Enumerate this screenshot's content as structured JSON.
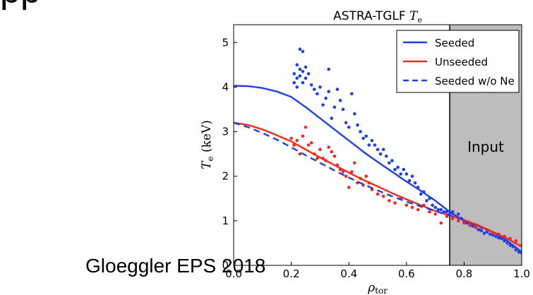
{
  "page": {
    "header_fragment": "pp",
    "credit": "Gloeggler EPS 2018"
  },
  "chart_data": {
    "type": "line",
    "title_main": "ASTRA-TGLF ",
    "title_var": "T",
    "title_sub": "e",
    "xlabel_var": "ρ",
    "xlabel_sub": "tor",
    "ylabel_var": "T",
    "ylabel_sub": "e",
    "ylabel_unit": " (keV)",
    "xlim": [
      0,
      1
    ],
    "ylim": [
      0,
      5.4
    ],
    "xticks": [
      0.0,
      0.2,
      0.4,
      0.6,
      0.8,
      1.0
    ],
    "xtick_labels": [
      "0.0",
      "0.2",
      "0.4",
      "0.6",
      "0.8",
      "1.0"
    ],
    "yticks": [
      0,
      1,
      2,
      3,
      4,
      5
    ],
    "ytick_labels": [
      "0",
      "1",
      "2",
      "3",
      "4",
      "5"
    ],
    "grid": false,
    "legend_position": "top-right",
    "colors": {
      "blue": "#1f3fe6",
      "red": "#ee2a1f",
      "shade": "#bdbdbd"
    },
    "shaded_region": {
      "x": [
        0.75,
        1.0
      ],
      "label": "Input"
    },
    "series": [
      {
        "name": "Seeded",
        "style": "solid",
        "color": "#1f3fe6",
        "x": [
          0,
          0.05,
          0.1,
          0.15,
          0.2,
          0.25,
          0.3,
          0.35,
          0.4,
          0.45,
          0.5,
          0.55,
          0.6,
          0.65,
          0.7,
          0.75,
          0.8,
          0.85,
          0.9,
          0.95,
          1.0
        ],
        "y": [
          4.03,
          4.02,
          3.98,
          3.9,
          3.78,
          3.55,
          3.3,
          3.05,
          2.8,
          2.55,
          2.32,
          2.1,
          1.88,
          1.67,
          1.45,
          1.2,
          1.0,
          0.88,
          0.75,
          0.55,
          0.3
        ]
      },
      {
        "name": "Unseeded",
        "style": "solid",
        "color": "#ee2a1f",
        "x": [
          0,
          0.05,
          0.1,
          0.15,
          0.2,
          0.25,
          0.3,
          0.35,
          0.4,
          0.45,
          0.5,
          0.55,
          0.6,
          0.65,
          0.7,
          0.75,
          0.8,
          0.85,
          0.9,
          0.95,
          1.0
        ],
        "y": [
          3.2,
          3.15,
          3.05,
          2.92,
          2.78,
          2.6,
          2.42,
          2.25,
          2.08,
          1.92,
          1.77,
          1.62,
          1.48,
          1.35,
          1.22,
          1.12,
          1.02,
          0.9,
          0.75,
          0.6,
          0.42
        ]
      },
      {
        "name": "Seeded w/o Ne",
        "style": "dashed",
        "color": "#1f3fe6",
        "x": [
          0,
          0.05,
          0.1,
          0.15,
          0.2,
          0.25,
          0.3,
          0.35,
          0.4,
          0.45,
          0.5,
          0.55,
          0.6,
          0.65,
          0.7,
          0.75,
          0.8
        ],
        "y": [
          3.2,
          3.1,
          2.97,
          2.82,
          2.65,
          2.47,
          2.3,
          2.13,
          1.97,
          1.82,
          1.68,
          1.55,
          1.43,
          1.32,
          1.22,
          1.12,
          1.03
        ]
      }
    ],
    "scatter_series": [
      {
        "color": "#1f3fe6",
        "points": [
          [
            0.21,
            4.3
          ],
          [
            0.21,
            4.1
          ],
          [
            0.22,
            4.5
          ],
          [
            0.22,
            4.2
          ],
          [
            0.22,
            4.0
          ],
          [
            0.23,
            4.85
          ],
          [
            0.23,
            4.4
          ],
          [
            0.23,
            4.25
          ],
          [
            0.24,
            4.8
          ],
          [
            0.24,
            4.35
          ],
          [
            0.24,
            4.1
          ],
          [
            0.25,
            4.45
          ],
          [
            0.25,
            4.2
          ],
          [
            0.26,
            4.3
          ],
          [
            0.27,
            4.05
          ],
          [
            0.28,
            3.95
          ],
          [
            0.29,
            3.85
          ],
          [
            0.3,
            4.0
          ],
          [
            0.31,
            3.6
          ],
          [
            0.32,
            3.75
          ],
          [
            0.33,
            3.9
          ],
          [
            0.33,
            4.4
          ],
          [
            0.34,
            3.3
          ],
          [
            0.35,
            3.55
          ],
          [
            0.36,
            3.95
          ],
          [
            0.37,
            3.7
          ],
          [
            0.38,
            3.5
          ],
          [
            0.39,
            3.2
          ],
          [
            0.4,
            3.1
          ],
          [
            0.41,
            3.85
          ],
          [
            0.42,
            3.4
          ],
          [
            0.43,
            3.15
          ],
          [
            0.44,
            3.0
          ],
          [
            0.45,
            2.85
          ],
          [
            0.46,
            2.9
          ],
          [
            0.47,
            2.7
          ],
          [
            0.48,
            2.8
          ],
          [
            0.49,
            2.7
          ],
          [
            0.5,
            2.6
          ],
          [
            0.51,
            2.5
          ],
          [
            0.52,
            2.6
          ],
          [
            0.53,
            2.45
          ],
          [
            0.54,
            2.3
          ],
          [
            0.55,
            2.35
          ],
          [
            0.56,
            2.15
          ],
          [
            0.57,
            2.2
          ],
          [
            0.58,
            2.05
          ],
          [
            0.59,
            2.15
          ],
          [
            0.6,
            2.05
          ],
          [
            0.61,
            1.9
          ],
          [
            0.62,
            2.0
          ],
          [
            0.63,
            1.85
          ],
          [
            0.64,
            1.75
          ],
          [
            0.65,
            1.6
          ],
          [
            0.66,
            1.65
          ],
          [
            0.67,
            1.45
          ],
          [
            0.68,
            1.5
          ],
          [
            0.69,
            1.35
          ],
          [
            0.7,
            1.3
          ],
          [
            0.71,
            1.25
          ],
          [
            0.72,
            1.25
          ],
          [
            0.73,
            1.2
          ],
          [
            0.74,
            1.2
          ],
          [
            0.75,
            1.15
          ],
          [
            0.76,
            1.2
          ],
          [
            0.77,
            1.1
          ],
          [
            0.78,
            1.15
          ],
          [
            0.79,
            1.05
          ],
          [
            0.8,
            1.0
          ],
          [
            0.81,
            0.95
          ],
          [
            0.82,
            0.9
          ],
          [
            0.83,
            0.88
          ],
          [
            0.84,
            0.85
          ],
          [
            0.85,
            0.8
          ],
          [
            0.86,
            0.78
          ],
          [
            0.87,
            0.72
          ],
          [
            0.88,
            0.75
          ],
          [
            0.89,
            0.7
          ],
          [
            0.9,
            0.68
          ],
          [
            0.91,
            0.65
          ],
          [
            0.92,
            0.62
          ],
          [
            0.93,
            0.6
          ],
          [
            0.94,
            0.55
          ],
          [
            0.95,
            0.5
          ],
          [
            0.96,
            0.45
          ],
          [
            0.97,
            0.42
          ],
          [
            0.98,
            0.35
          ],
          [
            0.99,
            0.3
          ],
          [
            1.0,
            0.28
          ]
        ]
      },
      {
        "color": "#ee2a1f",
        "points": [
          [
            0.2,
            2.85
          ],
          [
            0.21,
            2.7
          ],
          [
            0.22,
            2.8
          ],
          [
            0.23,
            2.5
          ],
          [
            0.24,
            2.9
          ],
          [
            0.25,
            3.1
          ],
          [
            0.26,
            2.7
          ],
          [
            0.27,
            2.75
          ],
          [
            0.28,
            2.5
          ],
          [
            0.29,
            2.4
          ],
          [
            0.3,
            2.6
          ],
          [
            0.31,
            2.4
          ],
          [
            0.32,
            2.35
          ],
          [
            0.33,
            2.65
          ],
          [
            0.34,
            2.55
          ],
          [
            0.35,
            2.45
          ],
          [
            0.36,
            2.25
          ],
          [
            0.37,
            2.15
          ],
          [
            0.38,
            2.1
          ],
          [
            0.39,
            2.0
          ],
          [
            0.4,
            1.75
          ],
          [
            0.41,
            2.1
          ],
          [
            0.42,
            2.3
          ],
          [
            0.43,
            1.85
          ],
          [
            0.44,
            1.95
          ],
          [
            0.45,
            1.8
          ],
          [
            0.46,
            2.0
          ],
          [
            0.47,
            1.85
          ],
          [
            0.48,
            1.7
          ],
          [
            0.5,
            1.6
          ],
          [
            0.52,
            1.55
          ],
          [
            0.54,
            1.45
          ],
          [
            0.56,
            1.4
          ],
          [
            0.58,
            1.5
          ],
          [
            0.6,
            1.35
          ],
          [
            0.62,
            1.3
          ],
          [
            0.64,
            1.25
          ],
          [
            0.66,
            1.35
          ],
          [
            0.68,
            1.2
          ],
          [
            0.7,
            1.15
          ],
          [
            0.72,
            0.95
          ],
          [
            0.74,
            1.1
          ],
          [
            0.76,
            1.05
          ],
          [
            0.78,
            1.0
          ],
          [
            0.8,
            0.95
          ],
          [
            0.82,
            0.9
          ],
          [
            0.84,
            0.85
          ],
          [
            0.86,
            0.85
          ],
          [
            0.88,
            0.8
          ],
          [
            0.9,
            0.72
          ],
          [
            0.92,
            0.7
          ],
          [
            0.94,
            0.65
          ],
          [
            0.96,
            0.6
          ],
          [
            0.98,
            0.55
          ],
          [
            1.0,
            0.45
          ]
        ]
      }
    ]
  }
}
